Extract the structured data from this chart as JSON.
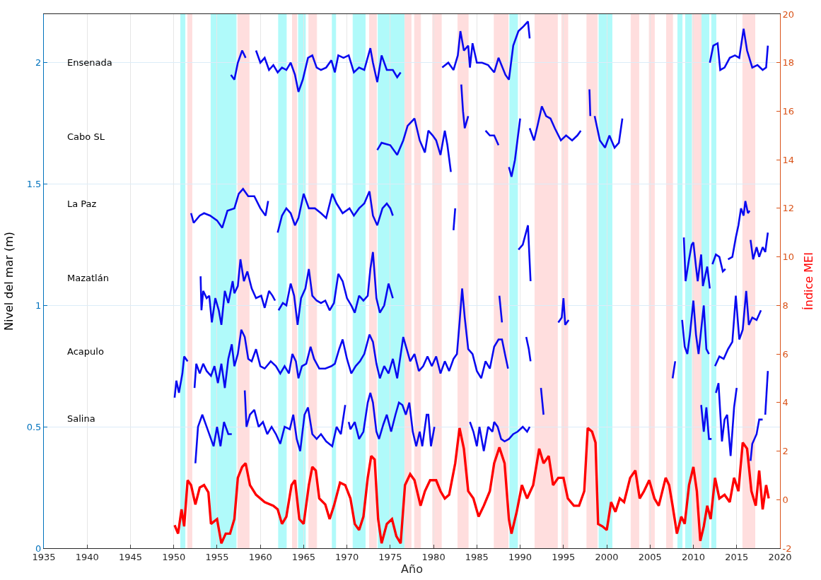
{
  "chart_data": {
    "type": "line",
    "xlabel": "Año",
    "ylabel": "Nivel del mar (m)",
    "y2label": "Índice MEI",
    "xlim": [
      1935,
      2020
    ],
    "xticks": [
      1935,
      1940,
      1945,
      1950,
      1955,
      1960,
      1965,
      1970,
      1975,
      1980,
      1985,
      1990,
      1995,
      2000,
      2005,
      2010,
      2015,
      2020
    ],
    "ylim": [
      0,
      2.2
    ],
    "yticks": [
      0,
      0.5,
      1,
      1.5,
      2
    ],
    "y2lim": [
      -2,
      20
    ],
    "y2ticks": [
      -2,
      0,
      2,
      4,
      6,
      8,
      10,
      12,
      14,
      16,
      18,
      20
    ],
    "annotations": [
      "Ensenada",
      "Cabo SL",
      "La Paz",
      "Mazatlán",
      "Acapulo",
      "Salina"
    ],
    "grid": true,
    "line_style": "solid",
    "marker": "none",
    "series": [
      {
        "color": "#0a0af0",
        "x": [
          1956.6,
          1957.0,
          1957.4,
          1957.9,
          1958.3,
          1958.9,
          1959.5,
          1960.0,
          1960.5,
          1961.0,
          1961.5,
          1962.0,
          1962.5,
          1963.0,
          1963.5,
          1964.0,
          1964.4,
          1964.9,
          1965.5,
          1966.0,
          1966.5,
          1967.0,
          1967.6,
          1968.2,
          1968.6,
          1969.0,
          1969.6,
          1970.2,
          1970.8,
          1971.4,
          1972.0,
          1972.7,
          1973.0,
          1973.5,
          1974.0,
          1974.6,
          1975.3,
          1975.8,
          1976.2,
          1978.5,
          1981.0,
          1981.7,
          1982.3,
          1982.8,
          1983.1,
          1983.5,
          1984.0,
          1984.2,
          1984.5,
          1985.0,
          1985.6,
          1986.3,
          1987.0,
          1987.5,
          1988.3,
          1988.7,
          1989.2,
          1989.8,
          1990.4,
          1990.9,
          1991.1,
          2000.0,
          2011.9,
          2012.3,
          2012.8,
          2013.1,
          2013.6,
          2014.2,
          2014.8,
          2015.3,
          2015.8,
          2016.2,
          2016.8,
          2017.4,
          2018.0,
          2018.4,
          2018.6
        ],
        "values": [
          1.95,
          1.93,
          2.0,
          2.05,
          2.02,
          null,
          2.05,
          2.0,
          2.02,
          1.97,
          1.99,
          1.96,
          1.98,
          1.97,
          2.0,
          1.95,
          1.88,
          1.93,
          2.02,
          2.03,
          1.98,
          1.97,
          1.98,
          2.01,
          1.96,
          2.03,
          2.02,
          2.03,
          1.96,
          1.98,
          1.97,
          2.06,
          2.0,
          1.92,
          2.03,
          1.97,
          1.97,
          1.94,
          1.96,
          null,
          1.98,
          2.0,
          1.97,
          2.03,
          2.13,
          2.05,
          2.07,
          1.98,
          2.08,
          2.0,
          2.0,
          1.99,
          1.96,
          2.02,
          1.95,
          1.93,
          2.07,
          2.13,
          2.15,
          2.17,
          2.1,
          null,
          2.0,
          2.07,
          2.08,
          1.97,
          1.98,
          2.02,
          2.03,
          2.02,
          2.14,
          2.05,
          1.98,
          1.99,
          1.97,
          1.98,
          2.07
        ]
      },
      {
        "color": "#0a0af0",
        "x": [
          1973.5,
          1974.0,
          1975.0,
          1975.8,
          1976.5,
          1977.0,
          1977.8,
          1978.4,
          1979.0,
          1979.4,
          1979.9,
          1980.3,
          1980.8,
          1981.3,
          1981.6,
          1982.0,
          1982.6,
          1983.2,
          1983.4,
          1983.6,
          1984.0,
          1985.0,
          1986.0,
          1986.5,
          1987.0,
          1987.5,
          1988.0,
          1988.7,
          1989.0,
          1989.4,
          1990.0,
          1990.5,
          1991.1,
          1991.6,
          1992.0,
          1992.5,
          1993.0,
          1993.5,
          1994.0,
          1994.7,
          1995.3,
          1996.0,
          1996.6,
          1997.0,
          1997.5,
          1998.0,
          1998.1,
          1998.3,
          1998.6,
          1999.2,
          1999.8,
          2000.3,
          2000.9,
          2001.4,
          2001.8
        ],
        "values": [
          1.64,
          1.67,
          1.66,
          1.62,
          1.68,
          1.74,
          1.77,
          1.68,
          1.63,
          1.72,
          1.7,
          1.68,
          1.62,
          1.72,
          1.66,
          1.55,
          null,
          1.91,
          1.8,
          1.73,
          1.78,
          null,
          1.72,
          1.7,
          1.7,
          1.66,
          null,
          1.57,
          1.53,
          1.6,
          1.77,
          null,
          1.73,
          1.68,
          1.74,
          1.82,
          1.78,
          1.77,
          1.73,
          1.68,
          1.7,
          1.68,
          1.7,
          1.72,
          null,
          1.89,
          1.78,
          null,
          1.78,
          1.68,
          1.65,
          1.7,
          1.65,
          1.67,
          1.77
        ]
      },
      {
        "color": "#0a0af0",
        "x": [
          1952.0,
          1952.3,
          1953.0,
          1953.5,
          1954.2,
          1955.0,
          1955.6,
          1956.2,
          1957.0,
          1957.5,
          1958.0,
          1958.6,
          1959.3,
          1960.0,
          1960.6,
          1960.9,
          1961.5,
          1962.0,
          1962.5,
          1963.0,
          1963.5,
          1964.0,
          1964.4,
          1965.0,
          1965.6,
          1966.3,
          1967.0,
          1967.6,
          1968.3,
          1968.8,
          1969.5,
          1970.3,
          1970.8,
          1971.4,
          1972.0,
          1972.6,
          1973.0,
          1973.5,
          1974.1,
          1974.6,
          1975.0,
          1975.3,
          1978.0,
          1982.3,
          1982.5,
          1986.0,
          1989.8,
          1990.3,
          1990.9,
          1991.2,
          2000.0,
          2008.9,
          2009.1,
          2009.5,
          2009.8,
          2010.0,
          2010.3,
          2010.5,
          2010.9,
          2011.1,
          2011.6,
          2011.9,
          2012.05,
          2012.2,
          2012.6,
          2013.0,
          2013.4,
          2013.7,
          2013.85,
          2014.0,
          2014.5,
          2014.9,
          2015.2,
          2015.5,
          2015.8,
          2016.0,
          2016.3,
          2016.5,
          2016.55,
          2016.6,
          2016.9,
          2017.3,
          2017.6,
          2018.0,
          2018.3,
          2018.6
        ],
        "values": [
          1.38,
          1.34,
          1.37,
          1.38,
          1.37,
          1.35,
          1.32,
          1.39,
          1.4,
          1.46,
          1.48,
          1.45,
          1.45,
          1.4,
          1.37,
          1.43,
          null,
          1.3,
          1.37,
          1.4,
          1.38,
          1.33,
          1.36,
          1.46,
          1.4,
          1.4,
          1.38,
          1.36,
          1.46,
          1.42,
          1.38,
          1.4,
          1.37,
          1.4,
          1.42,
          1.47,
          1.37,
          1.33,
          1.4,
          1.42,
          1.4,
          1.37,
          null,
          1.31,
          1.4,
          null,
          1.23,
          1.25,
          1.33,
          1.1,
          null,
          1.28,
          1.1,
          1.19,
          1.25,
          1.26,
          1.16,
          1.1,
          1.21,
          1.08,
          1.16,
          1.07,
          null,
          1.17,
          1.21,
          1.2,
          1.14,
          1.15,
          null,
          1.19,
          1.2,
          1.28,
          1.33,
          1.4,
          1.37,
          1.43,
          1.38,
          1.39,
          null,
          1.27,
          1.19,
          1.24,
          1.2,
          1.24,
          1.22,
          1.3
        ]
      },
      {
        "color": "#0a0af0",
        "x": [
          1953.1,
          1953.2,
          1953.4,
          1953.8,
          1954.1,
          1954.4,
          1954.8,
          1955.2,
          1955.5,
          1955.9,
          1956.3,
          1956.8,
          1957.0,
          1957.4,
          1957.7,
          1958.1,
          1958.5,
          1959.0,
          1959.5,
          1960.1,
          1960.5,
          1961.0,
          1961.4,
          1961.7,
          1961.9,
          1962.1,
          1962.6,
          1963.0,
          1963.5,
          1963.9,
          1964.3,
          1964.7,
          1965.2,
          1965.6,
          1966.0,
          1966.5,
          1967.0,
          1967.5,
          1968.0,
          1968.5,
          1969.0,
          1969.5,
          1970.0,
          1970.5,
          1970.9,
          1971.4,
          1971.9,
          1972.4,
          1972.7,
          1973.0,
          1973.4,
          1973.8,
          1974.3,
          1974.8,
          1975.3,
          1980.0,
          1987.6,
          1987.9,
          1990.0,
          1994.4,
          1994.8,
          1995.0,
          1995.2,
          1995.6,
          2000.0,
          2008.7,
          2009.0,
          2009.3,
          2009.6,
          2010.0,
          2010.3,
          2010.6,
          2010.9,
          2011.2,
          2011.5,
          2011.8,
          2012.2,
          2012.5,
          2013.0,
          2013.5,
          2014.0,
          2014.5,
          2014.9,
          2015.3,
          2015.7,
          2016.1,
          2016.4,
          2016.8,
          2017.3,
          2017.8
        ],
        "values": [
          1.12,
          0.98,
          1.06,
          1.03,
          1.04,
          0.93,
          1.03,
          0.98,
          0.92,
          1.06,
          1.01,
          1.1,
          1.05,
          1.08,
          1.19,
          1.1,
          1.14,
          1.07,
          1.03,
          1.04,
          0.99,
          1.06,
          1.04,
          1.02,
          null,
          0.98,
          1.01,
          1.0,
          1.09,
          1.04,
          0.92,
          1.03,
          1.07,
          1.15,
          1.04,
          1.02,
          1.01,
          1.02,
          0.98,
          1.01,
          1.13,
          1.1,
          1.03,
          1.0,
          0.97,
          1.04,
          1.02,
          1.04,
          1.15,
          1.22,
          1.03,
          0.97,
          1.0,
          1.09,
          1.03,
          null,
          1.04,
          0.93,
          null,
          0.93,
          0.95,
          1.03,
          0.92,
          0.94,
          null,
          0.94,
          0.83,
          0.8,
          0.88,
          1.02,
          0.88,
          0.8,
          0.9,
          1.0,
          0.82,
          0.8,
          null,
          0.75,
          0.79,
          0.78,
          0.82,
          0.85,
          1.04,
          0.86,
          0.9,
          1.06,
          0.92,
          0.95,
          0.94,
          0.98
        ]
      },
      {
        "color": "#0a0af0",
        "x": [
          1950.1,
          1950.3,
          1950.6,
          1951.0,
          1951.2,
          1951.6,
          1952.0,
          1952.4,
          1952.6,
          1953.0,
          1953.4,
          1953.8,
          1954.3,
          1954.7,
          1955.1,
          1955.5,
          1955.9,
          1956.3,
          1956.7,
          1957.0,
          1957.4,
          1957.8,
          1958.2,
          1958.6,
          1959.0,
          1959.5,
          1960.0,
          1960.5,
          1961.2,
          1961.8,
          1962.3,
          1962.8,
          1963.3,
          1963.7,
          1964.1,
          1964.4,
          1964.8,
          1965.3,
          1965.8,
          1966.2,
          1966.8,
          1967.5,
          1968.2,
          1968.6,
          1969.1,
          1969.5,
          1970.0,
          1970.5,
          1971.0,
          1971.5,
          1972.0,
          1972.6,
          1973.0,
          1973.4,
          1973.8,
          1974.3,
          1974.8,
          1975.3,
          1975.8,
          1976.5,
          1976.9,
          1977.3,
          1977.8,
          1978.3,
          1978.8,
          1979.3,
          1979.8,
          1980.3,
          1980.8,
          1981.3,
          1981.8,
          1982.3,
          1982.7,
          1983.0,
          1983.3,
          1983.6,
          1984.0,
          1984.5,
          1985.0,
          1985.5,
          1986.0,
          1986.5,
          1987.0,
          1987.5,
          1987.9,
          1988.3,
          1988.6,
          1989.6,
          1990.7,
          1991.0,
          1991.2,
          2000.0,
          2007.6,
          2007.9
        ],
        "values": [
          0.62,
          0.69,
          0.64,
          0.72,
          0.79,
          0.77,
          null,
          0.66,
          0.76,
          0.72,
          0.76,
          0.73,
          0.71,
          0.75,
          0.68,
          0.76,
          0.66,
          0.78,
          0.84,
          0.75,
          0.8,
          0.9,
          0.87,
          0.78,
          0.77,
          0.82,
          0.75,
          0.74,
          0.77,
          0.75,
          0.72,
          0.75,
          0.72,
          0.8,
          0.77,
          0.7,
          0.75,
          0.76,
          0.83,
          0.78,
          0.74,
          0.74,
          0.75,
          0.76,
          0.82,
          0.86,
          0.78,
          0.72,
          0.75,
          0.77,
          0.8,
          0.88,
          0.85,
          0.76,
          0.7,
          0.75,
          0.72,
          0.78,
          0.7,
          0.87,
          0.82,
          0.77,
          0.8,
          0.73,
          0.75,
          0.79,
          0.75,
          0.79,
          0.72,
          0.77,
          0.73,
          0.78,
          0.8,
          0.93,
          1.07,
          0.95,
          0.82,
          0.8,
          0.73,
          0.7,
          0.77,
          0.74,
          0.83,
          0.86,
          0.86,
          0.79,
          0.74,
          null,
          0.87,
          0.82,
          0.77,
          null,
          0.7,
          0.77
        ]
      },
      {
        "color": "#0a0af0",
        "x": [
          1952.5,
          1952.8,
          1953.3,
          1953.8,
          1954.3,
          1954.6,
          1955.0,
          1955.4,
          1955.8,
          1956.3,
          1956.7,
          1957.5,
          1958.2,
          1958.4,
          1958.8,
          1959.3,
          1959.8,
          1960.3,
          1960.8,
          1961.3,
          1961.8,
          1962.3,
          1962.8,
          1963.4,
          1963.8,
          1964.2,
          1964.6,
          1965.1,
          1965.5,
          1966.0,
          1966.5,
          1967.0,
          1967.6,
          1968.3,
          1968.8,
          1969.3,
          1969.8,
          1970.0,
          1970.2,
          1970.4,
          1970.9,
          1971.4,
          1971.9,
          1972.4,
          1972.7,
          1973.0,
          1973.4,
          1973.7,
          1974.2,
          1974.6,
          1975.1,
          1975.6,
          1976.0,
          1976.4,
          1976.8,
          1977.2,
          1977.6,
          1978.0,
          1978.4,
          1978.7,
          1979.2,
          1979.4,
          1979.7,
          1980.1,
          1981.5,
          1984.2,
          1984.6,
          1985.0,
          1985.3,
          1985.8,
          1986.3,
          1986.8,
          1987.0,
          1987.4,
          1987.8,
          1988.2,
          1988.7,
          1989.2,
          1989.7,
          1990.3,
          1990.8,
          1991.1,
          1991.8,
          1992.4,
          1992.7,
          2000.0,
          2010.9,
          2011.2,
          2011.5,
          2011.8,
          2012.1,
          2012.4,
          2012.6,
          2012.9,
          2013.3,
          2013.6,
          2013.9,
          2014.3,
          2014.7,
          2015.0,
          2015.8,
          2016.6,
          2016.8,
          2017.3,
          2017.6,
          2018.0,
          2018.15,
          2018.3,
          2018.6
        ],
        "values": [
          0.35,
          0.5,
          0.55,
          0.5,
          0.45,
          0.42,
          0.5,
          0.42,
          0.52,
          0.47,
          0.47,
          null,
          0.65,
          0.5,
          0.55,
          0.57,
          0.5,
          0.52,
          0.47,
          0.5,
          0.47,
          0.43,
          0.5,
          0.49,
          0.55,
          0.45,
          0.4,
          0.55,
          0.58,
          0.47,
          0.45,
          0.47,
          0.44,
          0.42,
          0.5,
          0.47,
          0.59,
          null,
          0.52,
          0.49,
          0.52,
          0.45,
          0.48,
          0.6,
          0.64,
          0.6,
          0.48,
          0.45,
          0.51,
          0.55,
          0.48,
          0.55,
          0.6,
          0.59,
          0.55,
          0.6,
          0.48,
          0.42,
          0.48,
          0.42,
          0.55,
          0.55,
          0.42,
          0.5,
          null,
          0.52,
          0.48,
          0.42,
          0.5,
          0.4,
          0.5,
          0.48,
          0.52,
          0.5,
          0.45,
          0.44,
          0.45,
          0.47,
          0.48,
          0.5,
          0.48,
          0.5,
          null,
          0.66,
          0.55,
          null,
          0.59,
          0.48,
          0.58,
          0.45,
          0.45,
          null,
          0.64,
          0.68,
          0.44,
          0.53,
          0.55,
          0.38,
          0.58,
          0.66,
          null,
          0.36,
          0.43,
          0.47,
          0.53,
          0.53,
          null,
          0.55,
          0.73
        ]
      },
      {
        "color": "#ff0000",
        "axis": "y2",
        "x": [
          1950.1,
          1950.5,
          1950.9,
          1951.2,
          1951.6,
          1952.0,
          1952.5,
          1953.0,
          1953.5,
          1954.0,
          1954.3,
          1955.0,
          1955.5,
          1956.0,
          1956.5,
          1957.0,
          1957.4,
          1957.9,
          1958.3,
          1958.8,
          1959.5,
          1960.5,
          1961.5,
          1962.0,
          1962.5,
          1963.0,
          1963.6,
          1964.0,
          1964.5,
          1965.0,
          1965.6,
          1966.0,
          1966.4,
          1966.8,
          1967.5,
          1968.0,
          1968.5,
          1969.2,
          1969.8,
          1970.4,
          1970.9,
          1971.4,
          1971.9,
          1972.4,
          1972.8,
          1973.2,
          1973.6,
          1974.0,
          1974.6,
          1975.2,
          1975.7,
          1976.2,
          1976.7,
          1977.3,
          1977.8,
          1978.5,
          1979.0,
          1979.6,
          1980.3,
          1980.8,
          1981.3,
          1981.8,
          1982.5,
          1983.0,
          1983.5,
          1984.0,
          1984.6,
          1985.2,
          1985.8,
          1986.5,
          1987.0,
          1987.6,
          1988.2,
          1988.7,
          1989.0,
          1989.6,
          1990.2,
          1990.8,
          1991.5,
          1992.2,
          1992.7,
          1993.3,
          1993.8,
          1994.4,
          1995.0,
          1995.5,
          1996.2,
          1996.8,
          1997.4,
          1997.8,
          1998.3,
          1998.7,
          1999.0,
          1999.5,
          2000.0,
          2000.5,
          2001.0,
          2001.5,
          2002.0,
          2002.7,
          2003.3,
          2003.8,
          2004.3,
          2004.9,
          2005.5,
          2006.0,
          2006.8,
          2007.2,
          2007.6,
          2008.1,
          2008.6,
          2009.0,
          2009.5,
          2010.0,
          2010.4,
          2010.8,
          2011.2,
          2011.6,
          2012.0,
          2012.5,
          2013.0,
          2013.6,
          2014.2,
          2014.7,
          2015.2,
          2015.7,
          2016.2,
          2016.7,
          2017.2,
          2017.6,
          2018.0,
          2018.4,
          2018.7
        ],
        "values": [
          -1.05,
          -1.4,
          -0.4,
          -1.1,
          0.8,
          0.6,
          -0.2,
          0.5,
          0.6,
          0.3,
          -1.0,
          -0.8,
          -1.8,
          -1.4,
          -1.4,
          -0.8,
          0.9,
          1.35,
          1.5,
          0.6,
          0.2,
          -0.1,
          -0.25,
          -0.4,
          -1.0,
          -0.7,
          0.6,
          0.8,
          -0.8,
          -1.0,
          0.6,
          1.35,
          1.2,
          0.05,
          -0.2,
          -0.8,
          -0.25,
          0.7,
          0.6,
          0.05,
          -1.0,
          -1.25,
          -0.7,
          0.9,
          1.8,
          1.65,
          -0.8,
          -1.8,
          -1.0,
          -0.8,
          -1.5,
          -1.8,
          0.6,
          1.05,
          0.8,
          -0.25,
          0.35,
          0.8,
          0.8,
          0.35,
          0.05,
          0.2,
          1.5,
          2.95,
          2.1,
          0.35,
          0.05,
          -0.7,
          -0.25,
          0.35,
          1.5,
          2.15,
          1.5,
          -0.8,
          -1.4,
          -0.5,
          0.6,
          0.05,
          0.6,
          2.1,
          1.5,
          1.8,
          0.6,
          0.9,
          0.9,
          0.05,
          -0.25,
          -0.25,
          0.35,
          2.95,
          2.8,
          2.35,
          -1.0,
          -1.1,
          -1.25,
          -0.1,
          -0.5,
          0.05,
          -0.1,
          0.9,
          1.2,
          0.05,
          0.35,
          0.8,
          0.05,
          -0.25,
          0.9,
          0.6,
          -0.25,
          -1.4,
          -0.7,
          -1.0,
          0.6,
          1.35,
          0.35,
          -1.7,
          -1.1,
          -0.25,
          -0.8,
          0.9,
          0.05,
          0.2,
          -0.1,
          0.9,
          0.35,
          2.35,
          2.1,
          0.35,
          -0.25,
          1.2,
          -0.4,
          0.6,
          0.05
        ]
      }
    ],
    "bands": [
      {
        "axis": "x",
        "from": 1950.8,
        "to": 1951.3,
        "color": "#b0fafa"
      },
      {
        "axis": "x",
        "from": 1954.3,
        "to": 1957.2,
        "color": "#b0fafa"
      },
      {
        "axis": "x",
        "from": 1962.1,
        "to": 1963.0,
        "color": "#b0fafa"
      },
      {
        "axis": "x",
        "from": 1964.4,
        "to": 1965.2,
        "color": "#b0fafa"
      },
      {
        "axis": "x",
        "from": 1968.3,
        "to": 1968.7,
        "color": "#b0fafa"
      },
      {
        "axis": "x",
        "from": 1970.7,
        "to": 1972.1,
        "color": "#b0fafa"
      },
      {
        "axis": "x",
        "from": 1973.6,
        "to": 1976.6,
        "color": "#b0fafa"
      },
      {
        "axis": "x",
        "from": 1988.8,
        "to": 1989.7,
        "color": "#b0fafa"
      },
      {
        "axis": "x",
        "from": 1999.1,
        "to": 2000.6,
        "color": "#b0fafa"
      },
      {
        "axis": "x",
        "from": 2008.2,
        "to": 2008.7,
        "color": "#b0fafa"
      },
      {
        "axis": "x",
        "from": 2009.1,
        "to": 2009.8,
        "color": "#b0fafa"
      },
      {
        "axis": "x",
        "from": 2010.9,
        "to": 2011.8,
        "color": "#b0fafa"
      },
      {
        "axis": "x",
        "from": 2012.1,
        "to": 2012.6,
        "color": "#b0fafa"
      },
      {
        "axis": "x",
        "from": 1951.6,
        "to": 1952.1,
        "color": "#ffdede"
      },
      {
        "axis": "x",
        "from": 1957.4,
        "to": 1958.7,
        "color": "#ffdede"
      },
      {
        "axis": "x",
        "from": 1963.7,
        "to": 1964.2,
        "color": "#ffdede"
      },
      {
        "axis": "x",
        "from": 1965.6,
        "to": 1966.5,
        "color": "#ffdede"
      },
      {
        "axis": "x",
        "from": 1972.6,
        "to": 1973.4,
        "color": "#ffdede"
      },
      {
        "axis": "x",
        "from": 1976.7,
        "to": 1977.4,
        "color": "#ffdede"
      },
      {
        "axis": "x",
        "from": 1977.8,
        "to": 1978.5,
        "color": "#ffdede"
      },
      {
        "axis": "x",
        "from": 1979.9,
        "to": 1980.9,
        "color": "#ffdede"
      },
      {
        "axis": "x",
        "from": 1982.8,
        "to": 1984.0,
        "color": "#ffdede"
      },
      {
        "axis": "x",
        "from": 1987.0,
        "to": 1988.6,
        "color": "#ffdede"
      },
      {
        "axis": "x",
        "from": 1991.7,
        "to": 1994.3,
        "color": "#ffdede"
      },
      {
        "axis": "x",
        "from": 1994.8,
        "to": 1995.5,
        "color": "#ffdede"
      },
      {
        "axis": "x",
        "from": 1997.7,
        "to": 1998.9,
        "color": "#ffdede"
      },
      {
        "axis": "x",
        "from": 2002.8,
        "to": 2003.7,
        "color": "#ffdede"
      },
      {
        "axis": "x",
        "from": 2004.9,
        "to": 2005.5,
        "color": "#ffdede"
      },
      {
        "axis": "x",
        "from": 2006.9,
        "to": 2007.6,
        "color": "#ffdede"
      },
      {
        "axis": "x",
        "from": 2009.9,
        "to": 2010.9,
        "color": "#ffdede"
      },
      {
        "axis": "x",
        "from": 2015.7,
        "to": 2017.1,
        "color": "#ffdede"
      }
    ]
  }
}
